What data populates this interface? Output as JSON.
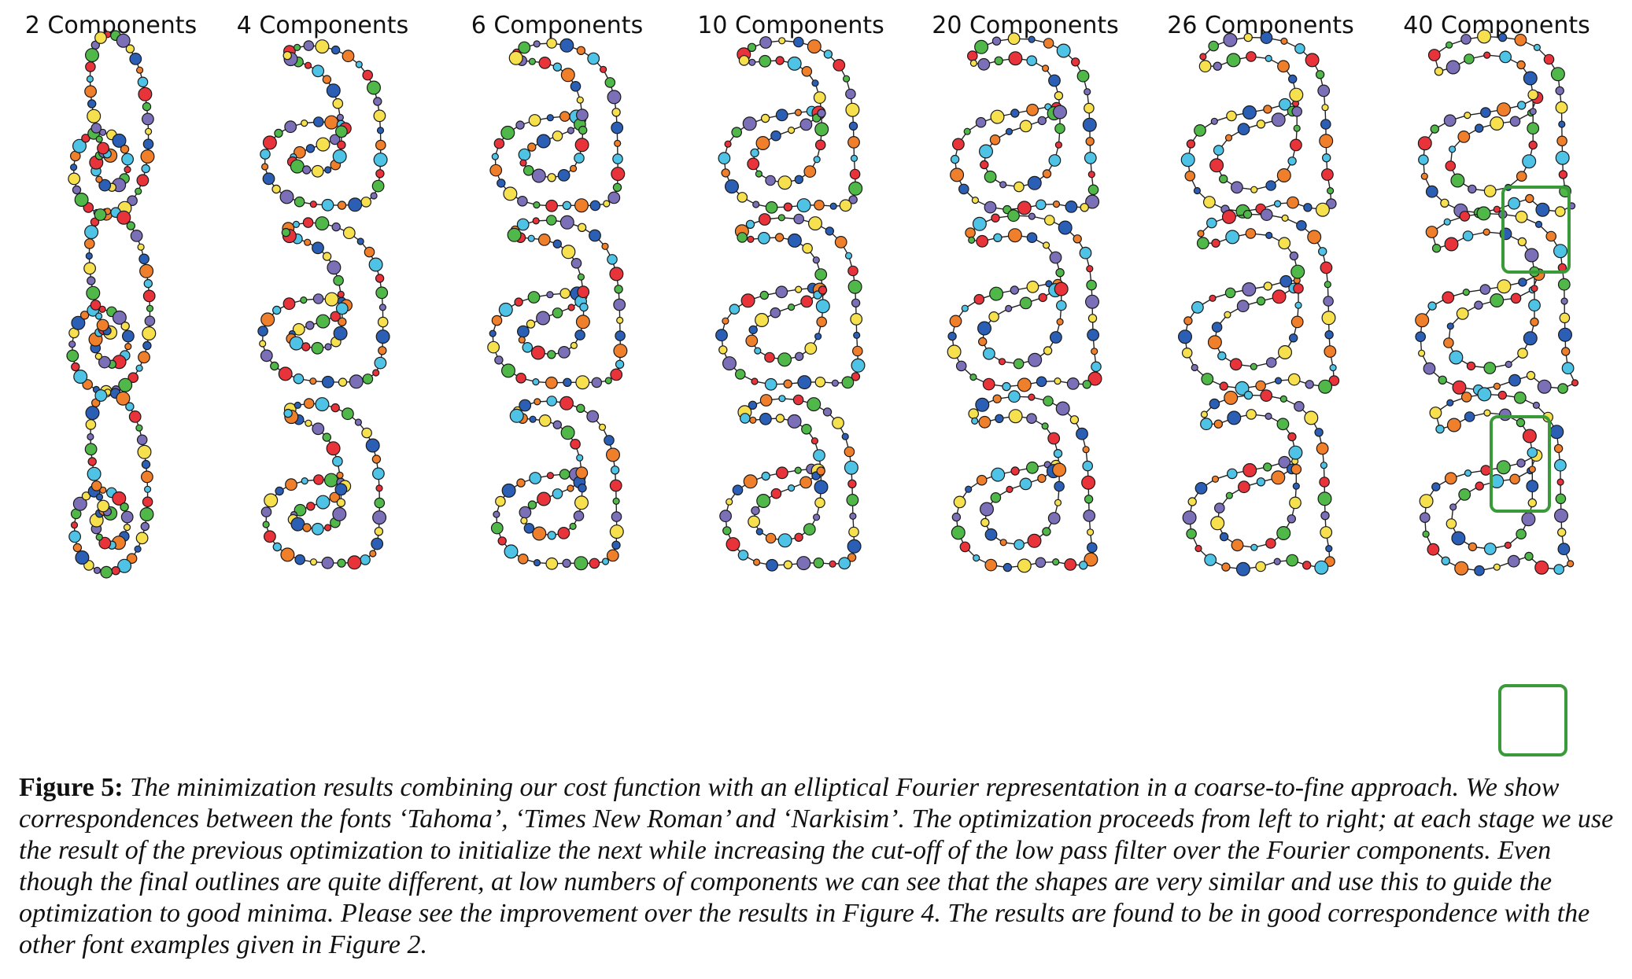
{
  "figure": {
    "columns": [
      {
        "label": "2 Components"
      },
      {
        "label": "4 Components"
      },
      {
        "label": "6 Components"
      },
      {
        "label": "10 Components"
      },
      {
        "label": "20 Components"
      },
      {
        "label": "26 Components"
      },
      {
        "label": "40 Components"
      }
    ],
    "rows": 3,
    "points_per_outline": 60,
    "highlight_color": "#3a9a3a",
    "palette": [
      "#e8333a",
      "#f07f2b",
      "#f7e04e",
      "#4fb849",
      "#4ec3e6",
      "#2a5fb5",
      "#7b6fb8"
    ]
  },
  "caption": {
    "label": "Figure 5:",
    "text": "The minimization results combining our cost function with an elliptical Fourier representation in a coarse-to-fine approach. We show correspondences between the fonts ‘Tahoma’, ‘Times New Roman’ and ‘Narkisim’. The optimization proceeds from left to right; at each stage we use the result of the previous optimization to initialize the next while increasing the cut-off of the low pass filter over the Fourier components. Even though the final outlines are quite different, at low numbers of components we can see that the shapes are very similar and use this to guide the optimization to good minima. Please see the improvement over the results in Figure 4. The results are found to be in good correspondence with the other font examples given in Figure 2."
  }
}
